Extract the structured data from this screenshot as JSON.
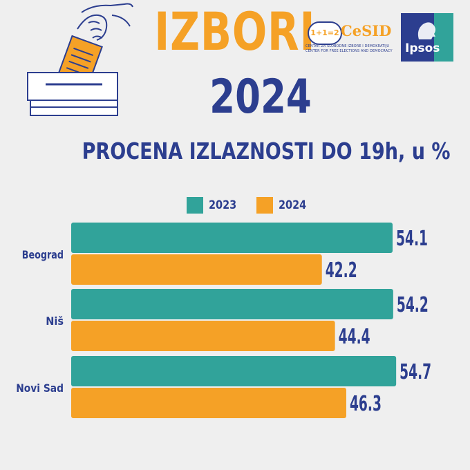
{
  "header": {
    "title": "IZBORI",
    "year": "2024"
  },
  "logos": {
    "cesid": {
      "mark": "1+1=2",
      "name": "CeSID",
      "subtitle_line1": "CENTAR ZA SLOBODNE IZBORE I DEMOKRATIJU",
      "subtitle_line2": "CENTER FOR FREE ELECTIONS AND DEMOCRACY"
    },
    "ipsos": {
      "name": "Ipsos"
    }
  },
  "colors": {
    "orange": "#f5a126",
    "teal": "#31a39a",
    "navy": "#2c3e8f",
    "background": "#efefef"
  },
  "icons": {
    "ballot": "ballot-box-icon"
  },
  "chart_data": {
    "type": "bar",
    "orientation": "horizontal",
    "title": "PROCENA IZLAZNOSTI DO 19h, u %",
    "categories": [
      "Beograd",
      "Niš",
      "Novi Sad"
    ],
    "series": [
      {
        "name": "2023",
        "color": "#31a39a",
        "values": [
          54.1,
          54.2,
          54.7
        ]
      },
      {
        "name": "2024",
        "color": "#f5a126",
        "values": [
          42.2,
          44.4,
          46.3
        ]
      }
    ],
    "xlim": [
      0,
      60
    ],
    "legend_position": "top",
    "grid": false,
    "data_labels": true
  }
}
